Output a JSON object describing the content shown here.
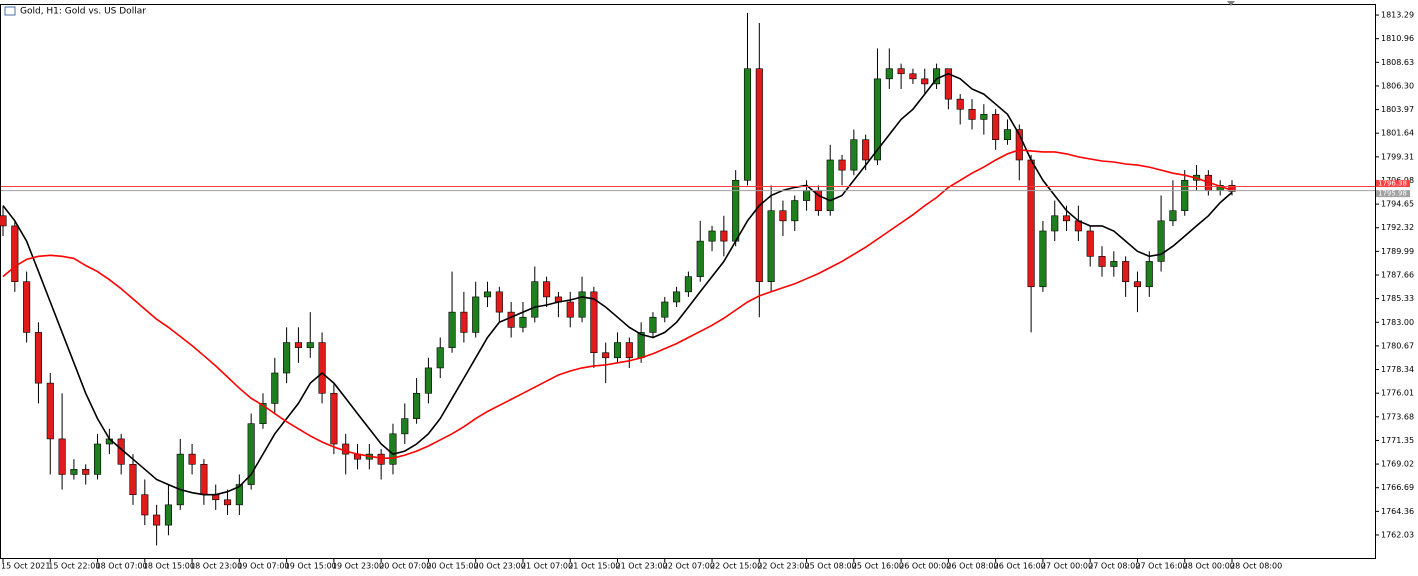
{
  "chart_data": {
    "type": "candlestick",
    "title": "Gold, H1: Gold vs. US Dollar",
    "up_color": "#1f7f1f",
    "down_color": "#e01b1b",
    "categories": [
      "15 Oct 2021",
      null,
      null,
      null,
      "15 Oct 22:00",
      null,
      null,
      null,
      "18 Oct 07:00",
      null,
      null,
      null,
      "18 Oct 15:00",
      null,
      null,
      null,
      "18 Oct 23:00",
      null,
      null,
      null,
      "19 Oct 07:00",
      null,
      null,
      null,
      "19 Oct 15:00",
      null,
      null,
      null,
      "19 Oct 23:00",
      null,
      null,
      null,
      "20 Oct 07:00",
      null,
      null,
      null,
      "20 Oct 15:00",
      null,
      null,
      null,
      "20 Oct 23:00",
      null,
      null,
      null,
      "21 Oct 07:00",
      null,
      null,
      null,
      "21 Oct 15:00",
      null,
      null,
      null,
      "21 Oct 23:00",
      null,
      null,
      null,
      "22 Oct 07:00",
      null,
      null,
      null,
      "22 Oct 15:00",
      null,
      null,
      null,
      "22 Oct 23:00",
      null,
      null,
      null,
      "25 Oct 08:00",
      null,
      null,
      null,
      "25 Oct 16:00",
      null,
      null,
      null,
      "26 Oct 00:00",
      null,
      null,
      null,
      "26 Oct 08:00",
      null,
      null,
      null,
      "26 Oct 16:00",
      null,
      null,
      null,
      "27 Oct 00:00",
      null,
      null,
      null,
      "27 Oct 08:00",
      null,
      null,
      null,
      "27 Oct 16:00",
      null,
      null,
      null,
      "28 Oct 00:00",
      null,
      null,
      null,
      "28 Oct 08:00"
    ],
    "open": [
      1793.5,
      1792.5,
      1787,
      1782,
      1777,
      1771.5,
      1768,
      1768.5,
      1768,
      1771,
      1771.5,
      1769,
      1766,
      1764,
      1763,
      1765,
      1770,
      1769,
      1766,
      1765.5,
      1765,
      1767,
      1773,
      1775,
      1778,
      1781,
      1780.5,
      1781,
      1776,
      1771,
      1770,
      1769.5,
      1770,
      1769,
      1772,
      1773.5,
      1776,
      1778.5,
      1780.5,
      1784,
      1782,
      1785.5,
      1786,
      1784,
      1782.5,
      1783.5,
      1787,
      1785.5,
      1785,
      1783.5,
      1786,
      1780,
      1779.5,
      1781,
      1779.5,
      1782,
      1783.5,
      1785,
      1786,
      1787.5,
      1791,
      1792,
      1791,
      1797,
      1808,
      1787,
      1794,
      1793,
      1795,
      1796,
      1794,
      1799,
      1798,
      1801,
      1799,
      1807,
      1808,
      1807.5,
      1807,
      1806.5,
      1808,
      1805,
      1804,
      1803,
      1803.5,
      1801,
      1802,
      1799,
      1786.5,
      1792,
      1793.5,
      1793,
      1792,
      1789.5,
      1788.5,
      1789,
      1787,
      1786.5,
      1789,
      1793,
      1794,
      1797,
      1797.5,
      1796,
      1796.5
    ],
    "high": [
      1794.5,
      1793,
      1788,
      1783,
      1778,
      1776,
      1769.5,
      1769,
      1772,
      1772.5,
      1772,
      1770,
      1767.5,
      1765,
      1767,
      1771.5,
      1771,
      1769.5,
      1767,
      1766.5,
      1768,
      1774,
      1776,
      1779.5,
      1782.5,
      1782.5,
      1784,
      1782,
      1777,
      1772,
      1771,
      1771,
      1770.5,
      1773,
      1775,
      1777.5,
      1779.5,
      1781.5,
      1788,
      1786,
      1787,
      1787,
      1786.5,
      1785,
      1785,
      1788.5,
      1787.5,
      1786,
      1786,
      1787.5,
      1786.5,
      1781,
      1782,
      1781.5,
      1783,
      1784,
      1785.5,
      1786.5,
      1788,
      1793,
      1792.5,
      1793.5,
      1798,
      1813.5,
      1812.5,
      1796.5,
      1795,
      1795.5,
      1797,
      1796.5,
      1800.5,
      1799.5,
      1802,
      1801.5,
      1810,
      1810,
      1808.5,
      1808,
      1808,
      1808.5,
      1808,
      1805.5,
      1805,
      1804.5,
      1804,
      1803,
      1802.5,
      1799.5,
      1793,
      1795,
      1794.5,
      1794.5,
      1792.5,
      1790.5,
      1790,
      1789.5,
      1788,
      1790,
      1795.5,
      1797,
      1798,
      1798.5,
      1798,
      1797,
      1797
    ],
    "low": [
      1791.5,
      1786,
      1781,
      1775,
      1768,
      1766.5,
      1767.5,
      1767,
      1767.5,
      1770,
      1768,
      1765,
      1763,
      1761,
      1762,
      1764.5,
      1768,
      1765,
      1764.5,
      1764,
      1764,
      1766.5,
      1772.5,
      1774,
      1777,
      1779,
      1779.5,
      1775,
      1770,
      1768,
      1768.5,
      1768.5,
      1767.5,
      1768,
      1771,
      1773,
      1775,
      1777.5,
      1780,
      1781,
      1781.5,
      1784.5,
      1783,
      1781.5,
      1782,
      1783,
      1784.5,
      1783.5,
      1782.5,
      1783,
      1778.5,
      1777,
      1779,
      1778.5,
      1779,
      1781.5,
      1783,
      1784.5,
      1785.5,
      1787,
      1790,
      1789.5,
      1790.5,
      1796.5,
      1783.5,
      1786,
      1791.5,
      1792,
      1794,
      1793.5,
      1793.5,
      1796.5,
      1797.5,
      1798,
      1798.5,
      1806,
      1806,
      1806.5,
      1805.5,
      1806,
      1804,
      1802.5,
      1802,
      1801.5,
      1800,
      1800.5,
      1797,
      1782,
      1786,
      1791,
      1792,
      1791,
      1788.5,
      1787.5,
      1787.5,
      1785.5,
      1784,
      1785.5,
      1788,
      1792.5,
      1793.5,
      1796,
      1795.5,
      1795.5,
      1795.5
    ],
    "close": [
      1792.5,
      1787,
      1782,
      1777,
      1771.5,
      1768,
      1768.5,
      1768,
      1771,
      1771.5,
      1769,
      1766,
      1764,
      1763,
      1765,
      1770,
      1769,
      1766,
      1765.5,
      1765,
      1767,
      1773,
      1775,
      1778,
      1781,
      1780.5,
      1781,
      1776,
      1771,
      1770,
      1769.5,
      1770,
      1769,
      1772,
      1773.5,
      1776,
      1778.5,
      1780.5,
      1784,
      1782,
      1785.5,
      1786,
      1784,
      1782.5,
      1783.5,
      1787,
      1785.5,
      1785,
      1783.5,
      1786,
      1780,
      1779.5,
      1781,
      1779.5,
      1782,
      1783.5,
      1785,
      1786,
      1787.5,
      1791,
      1792,
      1791,
      1797,
      1808,
      1787,
      1794,
      1793,
      1795,
      1796,
      1794,
      1799,
      1798,
      1801,
      1799,
      1807,
      1808,
      1807.5,
      1807,
      1806.5,
      1808,
      1805,
      1804,
      1803,
      1803.5,
      1801,
      1802,
      1799,
      1786.5,
      1792,
      1793.5,
      1793,
      1792,
      1789.5,
      1788.5,
      1789,
      1787,
      1786.5,
      1789,
      1793,
      1794,
      1797,
      1797.5,
      1796,
      1796.5,
      1795.9
    ],
    "series": [
      {
        "color": "#000000",
        "values": [
          1794.5,
          1793,
          1791,
          1788,
          1785,
          1782,
          1779,
          1776,
          1773.5,
          1771.5,
          1770.5,
          1769.5,
          1768.5,
          1767.5,
          1767,
          1766.5,
          1766.2,
          1766,
          1766,
          1766.3,
          1766.8,
          1768,
          1770,
          1772,
          1773.5,
          1775,
          1777,
          1778,
          1777,
          1775.5,
          1774,
          1772.5,
          1771,
          1770,
          1770.3,
          1771,
          1772,
          1773.5,
          1775.5,
          1777.5,
          1779.5,
          1781.5,
          1783,
          1783.5,
          1784,
          1784.5,
          1784.7,
          1785,
          1785.2,
          1785.5,
          1785.3,
          1784.5,
          1783.5,
          1782.5,
          1781.8,
          1781.5,
          1782,
          1783,
          1784.5,
          1786,
          1787.5,
          1789,
          1791,
          1793,
          1794.5,
          1795.5,
          1796,
          1796.3,
          1796.5,
          1795.5,
          1795,
          1795.5,
          1797,
          1798.5,
          1800,
          1801.5,
          1803,
          1804,
          1805.5,
          1807,
          1807.5,
          1807,
          1806,
          1805.5,
          1804.5,
          1803.5,
          1801.5,
          1799,
          1797,
          1795.5,
          1794,
          1793,
          1792.5,
          1792.5,
          1792,
          1791,
          1790,
          1789.5,
          1789.7,
          1790.5,
          1791.5,
          1792.5,
          1793.5,
          1794.8,
          1795.8
        ]
      },
      {
        "color": "#ff0000",
        "values": [
          1787.5,
          1788.5,
          1789.2,
          1789.5,
          1789.6,
          1789.5,
          1789.3,
          1788.6,
          1788,
          1787.2,
          1786.3,
          1785.3,
          1784.3,
          1783.3,
          1782.5,
          1781.6,
          1780.7,
          1779.7,
          1778.7,
          1777.6,
          1776.5,
          1775.5,
          1774.8,
          1774,
          1773.2,
          1772.5,
          1771.8,
          1771.2,
          1770.7,
          1770.3,
          1770,
          1769.8,
          1769.6,
          1769.6,
          1769.9,
          1770.3,
          1770.8,
          1771.4,
          1772,
          1772.7,
          1773.5,
          1774.2,
          1774.8,
          1775.4,
          1776,
          1776.6,
          1777.2,
          1777.8,
          1778.2,
          1778.5,
          1778.7,
          1778.8,
          1779,
          1779.2,
          1779.5,
          1779.9,
          1780.4,
          1780.9,
          1781.5,
          1782.1,
          1782.7,
          1783.4,
          1784.2,
          1785,
          1785.6,
          1786,
          1786.4,
          1786.8,
          1787.3,
          1787.8,
          1788.4,
          1789,
          1789.7,
          1790.4,
          1791.2,
          1792,
          1792.8,
          1793.6,
          1794.5,
          1795.3,
          1796.3,
          1797,
          1797.7,
          1798.3,
          1799,
          1799.6,
          1800,
          1799.9,
          1799.8,
          1799.8,
          1799.6,
          1799.3,
          1799.1,
          1798.9,
          1798.8,
          1798.6,
          1798.5,
          1798.3,
          1798,
          1797.7,
          1797.5,
          1797.2,
          1796.8,
          1796.4,
          1796
        ]
      }
    ],
    "price_lines": [
      {
        "value": 1796.38,
        "label": "1796.38",
        "color": "#ff4040"
      },
      {
        "value": 1795.98,
        "label": "1795.98",
        "color": "#a0a0a0"
      }
    ],
    "ylim": [
      1759.76,
      1814.28
    ],
    "yticks": [
      1813.29,
      1810.96,
      1808.63,
      {
        "value": 1806.3,
        "label": "1806.30"
      },
      1803.97,
      1801.64,
      1799.31,
      1796.98,
      1794.65,
      1792.32,
      1789.99,
      1787.66,
      1785.33,
      {
        "value": 1783,
        "label": "1783.00"
      },
      1780.67,
      1778.34,
      1776.01,
      1773.68,
      1771.35,
      1769.02,
      1766.69,
      1764.36,
      1762.03
    ]
  }
}
